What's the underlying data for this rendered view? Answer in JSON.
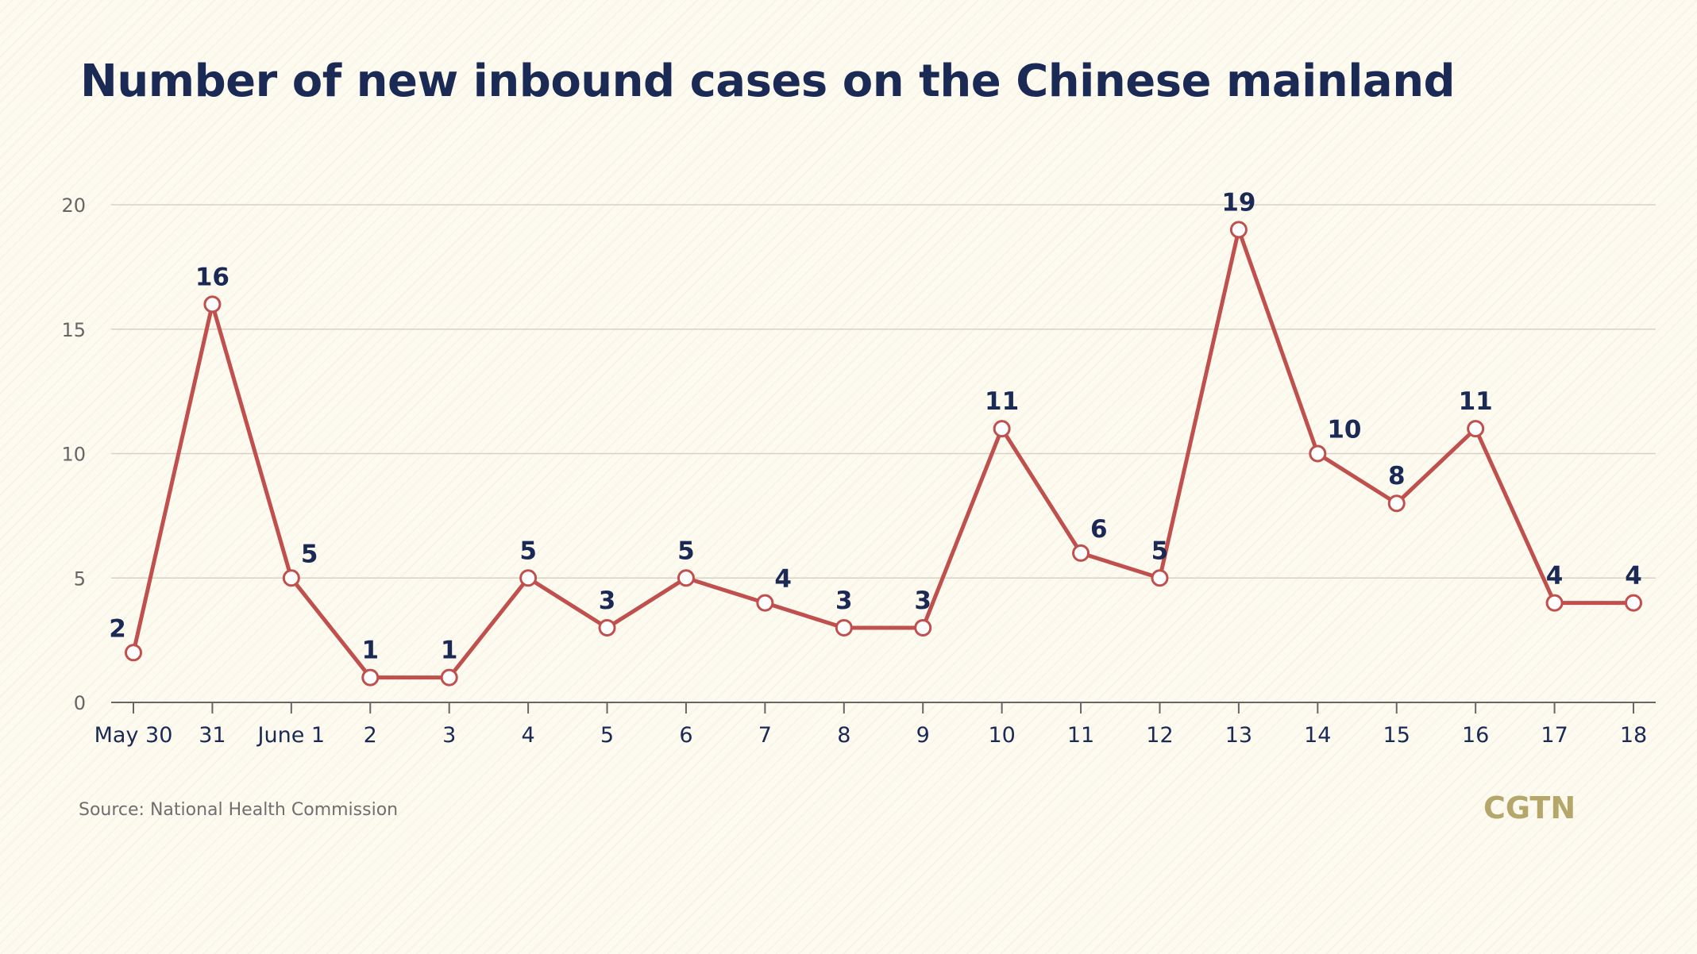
{
  "chart_title": "Number of new inbound cases on the Chinese mainland",
  "source_note": "Source: National Health Commission",
  "brand": "CGTN",
  "colors": {
    "background": "#fdfaf0",
    "title": "#1b2a55",
    "line": "#c0504d",
    "marker_fill": "#ffffff",
    "data_label": "#1b2a55",
    "axis": "#666666",
    "grid": "#d7d2c3",
    "brand": "#b5a76a"
  },
  "chart_data": {
    "type": "line",
    "title": "Number of new inbound cases on the Chinese mainland",
    "xlabel": "",
    "ylabel": "",
    "categories": [
      "May 30",
      "31",
      "June 1",
      "2",
      "3",
      "4",
      "5",
      "6",
      "7",
      "8",
      "9",
      "10",
      "11",
      "12",
      "13",
      "14",
      "15",
      "16",
      "17",
      "18"
    ],
    "series": [
      {
        "values": [
          2,
          16,
          5,
          1,
          1,
          5,
          3,
          5,
          4,
          3,
          3,
          11,
          6,
          5,
          19,
          10,
          8,
          11,
          4,
          4
        ]
      }
    ],
    "ylim": [
      0,
      20
    ],
    "yticks": [
      0,
      5,
      10,
      15,
      20
    ],
    "grid": "horizontal",
    "legend": "none",
    "data_labels": true
  }
}
